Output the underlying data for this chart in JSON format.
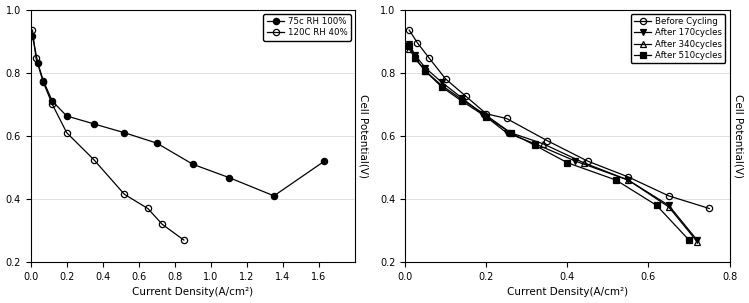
{
  "left": {
    "series": [
      {
        "label": "75c RH 100%",
        "marker": "o",
        "fillstyle": "full",
        "color": "black",
        "x": [
          0.01,
          0.04,
          0.07,
          0.12,
          0.2,
          0.35,
          0.52,
          0.7,
          0.9,
          1.1,
          1.35,
          1.63
        ],
        "y": [
          0.916,
          0.83,
          0.775,
          0.71,
          0.663,
          0.638,
          0.61,
          0.577,
          0.51,
          0.468,
          0.41,
          0.52
        ]
      },
      {
        "label": "120C RH 40%",
        "marker": "o",
        "fillstyle": "none",
        "color": "black",
        "x": [
          0.01,
          0.03,
          0.07,
          0.12,
          0.2,
          0.35,
          0.52,
          0.65,
          0.73,
          0.85
        ],
        "y": [
          0.935,
          0.845,
          0.77,
          0.7,
          0.61,
          0.525,
          0.415,
          0.37,
          0.32,
          0.27
        ]
      }
    ],
    "xlabel": "Current Density(A/cm²)",
    "ylabel": "Cell Potential(V)",
    "xlim": [
      0.0,
      1.8
    ],
    "ylim": [
      0.2,
      1.0
    ],
    "xticks": [
      0.0,
      0.2,
      0.4,
      0.6,
      0.8,
      1.0,
      1.2,
      1.4,
      1.6
    ],
    "yticks": [
      0.2,
      0.4,
      0.6,
      0.8,
      1.0
    ],
    "ylabel_right": true
  },
  "right": {
    "series": [
      {
        "label": "Before Cycling",
        "marker": "o",
        "fillstyle": "none",
        "color": "black",
        "x": [
          0.01,
          0.03,
          0.06,
          0.1,
          0.15,
          0.2,
          0.25,
          0.35,
          0.45,
          0.55,
          0.65,
          0.75
        ],
        "y": [
          0.935,
          0.895,
          0.845,
          0.78,
          0.725,
          0.67,
          0.655,
          0.585,
          0.52,
          0.47,
          0.41,
          0.37
        ]
      },
      {
        "label": "After 170cycles",
        "marker": "v",
        "fillstyle": "full",
        "color": "black",
        "x": [
          0.01,
          0.025,
          0.05,
          0.09,
          0.14,
          0.19,
          0.25,
          0.32,
          0.42,
          0.55,
          0.65,
          0.72
        ],
        "y": [
          0.89,
          0.855,
          0.815,
          0.77,
          0.72,
          0.67,
          0.61,
          0.575,
          0.52,
          0.46,
          0.38,
          0.27
        ]
      },
      {
        "label": "After 340cycles",
        "marker": "^",
        "fillstyle": "none",
        "color": "black",
        "x": [
          0.01,
          0.025,
          0.05,
          0.09,
          0.14,
          0.2,
          0.26,
          0.34,
          0.44,
          0.55,
          0.65,
          0.72
        ],
        "y": [
          0.875,
          0.845,
          0.805,
          0.76,
          0.715,
          0.665,
          0.61,
          0.575,
          0.515,
          0.46,
          0.375,
          0.265
        ]
      },
      {
        "label": "After 510cycles",
        "marker": "s",
        "fillstyle": "full",
        "color": "black",
        "x": [
          0.01,
          0.025,
          0.05,
          0.09,
          0.14,
          0.2,
          0.26,
          0.32,
          0.4,
          0.52,
          0.62,
          0.7
        ],
        "y": [
          0.885,
          0.845,
          0.805,
          0.755,
          0.71,
          0.66,
          0.61,
          0.57,
          0.515,
          0.46,
          0.38,
          0.27
        ]
      }
    ],
    "xlabel": "Current Density(A/cm²)",
    "ylabel": "Cell Potential(V)",
    "xlim": [
      0.0,
      0.8
    ],
    "ylim": [
      0.2,
      1.0
    ],
    "xticks": [
      0.0,
      0.2,
      0.4,
      0.6,
      0.8
    ],
    "yticks": [
      0.2,
      0.4,
      0.6,
      0.8,
      1.0
    ],
    "ylabel_right": false
  }
}
